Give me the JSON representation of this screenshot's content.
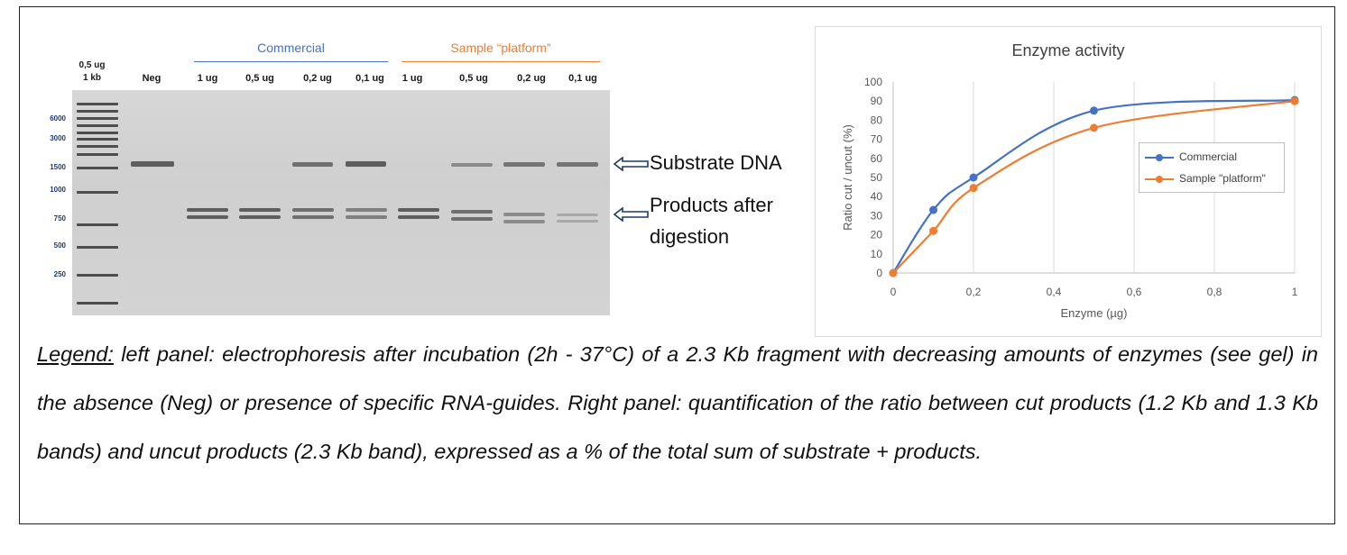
{
  "gel": {
    "ladder_label_top": "0,5 ug",
    "ladder_label_bottom": "1 kb",
    "groups": [
      {
        "label": "Commercial",
        "color": "#4472c4"
      },
      {
        "label": "Sample “platform”",
        "color": "#ed7d31"
      }
    ],
    "lanes": [
      "Neg",
      "1 ug",
      "0,5 ug",
      "0,2 ug",
      "0,1 ug",
      "1 ug",
      "0,5 ug",
      "0,2 ug",
      "0,1 ug"
    ],
    "sizes": [
      "6000",
      "3000",
      "1500",
      "1000",
      "750",
      "500",
      "250"
    ],
    "annotation_substrate": "Substrate DNA",
    "annotation_products_line1": "Products after",
    "annotation_products_line2": "digestion"
  },
  "chart_data": {
    "type": "line",
    "title": "Enzyme activity",
    "xlabel": "Enzyme (µg)",
    "ylabel": "Ratio cut / uncut (%)",
    "xlim": [
      0,
      1
    ],
    "ylim": [
      0,
      100
    ],
    "xticks": [
      "0",
      "0,2",
      "0,4",
      "0,6",
      "0,8",
      "1"
    ],
    "yticks": [
      "0",
      "10",
      "20",
      "30",
      "40",
      "50",
      "60",
      "70",
      "80",
      "90",
      "100"
    ],
    "grid": "vertical",
    "legend_position": "right",
    "series": [
      {
        "name": "Commercial",
        "color": "#4472c4",
        "x": [
          0,
          0.1,
          0.2,
          0.5,
          1
        ],
        "y": [
          0,
          33,
          50,
          85,
          90.5
        ]
      },
      {
        "name": "Sample \"platform\"",
        "color": "#ed7d31",
        "x": [
          0,
          0.1,
          0.2,
          0.5,
          1
        ],
        "y": [
          0,
          22,
          44.5,
          76,
          90
        ]
      }
    ]
  },
  "caption": {
    "lead": "Legend:",
    "text": " left panel: electrophoresis after incubation (2h - 37°C) of a 2.3 Kb fragment with decreasing amounts of enzymes (see gel) in the absence (Neg) or presence of specific RNA-guides. Right panel: quantification of the ratio between cut products (1.2 Kb and 1.3 Kb bands) and uncut products (2.3 Kb band), expressed as a % of the total sum of substrate + products."
  }
}
